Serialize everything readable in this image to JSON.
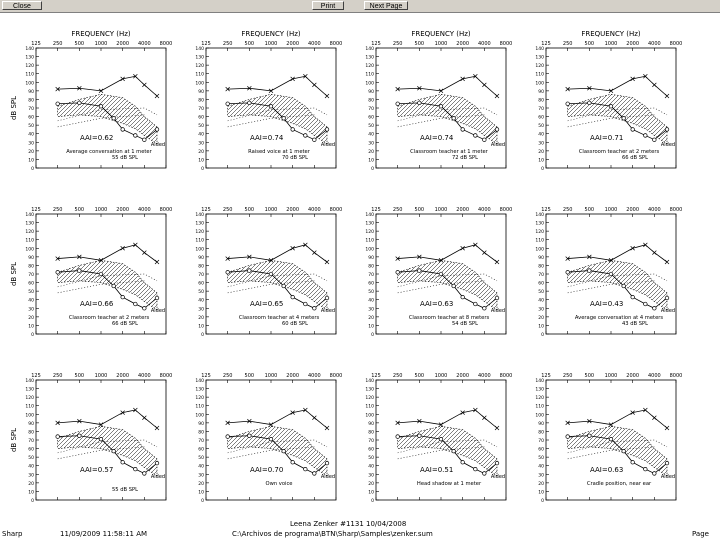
{
  "toolbar": {
    "close_label": "Close",
    "print_label": "Print",
    "next_page_label": "Next Page"
  },
  "footer": {
    "app": "Sharp",
    "datetime": "11/09/2009 11:58:11 AM",
    "center": "Leena Zenker  #1131  10/04/2008",
    "path": "C:\\Archivos de programa\\BTN\\Sharp\\Samples\\zenker.sum",
    "page": "Page"
  },
  "colors": {
    "line": "#000000",
    "toolbar": "#d4d0c8"
  },
  "chart_data": [
    {
      "type": "line",
      "xlabel": "FREQUENCY (Hz)",
      "ylabel": "dB SPL",
      "ylim": [
        0,
        140
      ],
      "x_ticks": [
        "125",
        "250",
        "500",
        "1000",
        "2000",
        "4000",
        "8000"
      ],
      "y_ticks": [
        "0",
        "10",
        "20",
        "30",
        "40",
        "50",
        "60",
        "70",
        "80",
        "90",
        "100",
        "110",
        "120",
        "130",
        "140"
      ],
      "aai": "AAI=0.62",
      "condition": "Average conversation at 1 meter",
      "level": "55 dB SPL",
      "aided": "Aided",
      "series": [
        {
          "x": [
            250,
            500,
            1000,
            2000,
            3000,
            4000,
            6000
          ],
          "y": [
            92,
            93,
            90,
            104,
            107,
            97,
            84
          ]
        },
        {
          "x": [
            250,
            500,
            1000,
            1500,
            2000,
            3000,
            4000,
            6000
          ],
          "y": [
            75,
            76,
            72,
            58,
            45,
            38,
            33,
            45
          ]
        }
      ]
    },
    {
      "type": "line",
      "xlabel": "FREQUENCY (Hz)",
      "ylim": [
        0,
        140
      ],
      "x_ticks": [
        "125",
        "250",
        "500",
        "1000",
        "2000",
        "4000",
        "8000"
      ],
      "y_ticks": [
        "0",
        "10",
        "20",
        "30",
        "40",
        "50",
        "60",
        "70",
        "80",
        "90",
        "100",
        "110",
        "120",
        "130",
        "140"
      ],
      "aai": "AAI=0.74",
      "condition": "Raised voice at 1 meter",
      "level": "70 dB SPL",
      "aided": "Aided",
      "series": [
        {
          "x": [
            250,
            500,
            1000,
            2000,
            3000,
            4000,
            6000
          ],
          "y": [
            92,
            93,
            90,
            104,
            107,
            97,
            84
          ]
        },
        {
          "x": [
            250,
            500,
            1000,
            1500,
            2000,
            3000,
            4000,
            6000
          ],
          "y": [
            75,
            76,
            72,
            58,
            45,
            38,
            33,
            45
          ]
        }
      ]
    },
    {
      "type": "line",
      "xlabel": "FREQUENCY (Hz)",
      "ylim": [
        0,
        140
      ],
      "x_ticks": [
        "125",
        "250",
        "500",
        "1000",
        "2000",
        "4000",
        "8000"
      ],
      "y_ticks": [
        "0",
        "10",
        "20",
        "30",
        "40",
        "50",
        "60",
        "70",
        "80",
        "90",
        "100",
        "110",
        "120",
        "130",
        "140"
      ],
      "aai": "AAI=0.74",
      "condition": "Classroom teacher at 1 meter",
      "level": "72 dB SPL",
      "aided": "Aided",
      "series": [
        {
          "x": [
            250,
            500,
            1000,
            2000,
            3000,
            4000,
            6000
          ],
          "y": [
            92,
            93,
            90,
            104,
            107,
            97,
            84
          ]
        },
        {
          "x": [
            250,
            500,
            1000,
            1500,
            2000,
            3000,
            4000,
            6000
          ],
          "y": [
            75,
            76,
            72,
            58,
            45,
            38,
            33,
            45
          ]
        }
      ]
    },
    {
      "type": "line",
      "xlabel": "FREQUENCY (Hz)",
      "ylim": [
        0,
        140
      ],
      "x_ticks": [
        "125",
        "250",
        "500",
        "1000",
        "2000",
        "4000",
        "8000"
      ],
      "y_ticks": [
        "0",
        "10",
        "20",
        "30",
        "40",
        "50",
        "60",
        "70",
        "80",
        "90",
        "100",
        "110",
        "120",
        "130",
        "140"
      ],
      "aai": "AAI=0.71",
      "condition": "Classroom teacher at 2 meters",
      "level": "66 dB SPL",
      "aided": "Aided",
      "series": [
        {
          "x": [
            250,
            500,
            1000,
            2000,
            3000,
            4000,
            6000
          ],
          "y": [
            92,
            93,
            90,
            104,
            107,
            97,
            84
          ]
        },
        {
          "x": [
            250,
            500,
            1000,
            1500,
            2000,
            3000,
            4000,
            6000
          ],
          "y": [
            75,
            76,
            72,
            58,
            45,
            38,
            33,
            45
          ]
        }
      ]
    },
    {
      "type": "line",
      "ylabel": "dB SPL",
      "ylim": [
        0,
        140
      ],
      "x_ticks": [
        "125",
        "250",
        "500",
        "1000",
        "2000",
        "4000",
        "8000"
      ],
      "y_ticks": [
        "0",
        "10",
        "20",
        "30",
        "40",
        "50",
        "60",
        "70",
        "80",
        "90",
        "100",
        "110",
        "120",
        "130",
        "140"
      ],
      "aai": "AAI=0.66",
      "condition": "Classroom teacher at 2 meters",
      "level": "66 dB SPL",
      "aided": "Aided",
      "series": [
        {
          "x": [
            250,
            500,
            1000,
            2000,
            3000,
            4000,
            6000
          ],
          "y": [
            88,
            90,
            86,
            100,
            104,
            95,
            84
          ]
        },
        {
          "x": [
            250,
            500,
            1000,
            1500,
            2000,
            3000,
            4000,
            6000
          ],
          "y": [
            72,
            74,
            70,
            56,
            43,
            35,
            30,
            42
          ]
        }
      ]
    },
    {
      "type": "line",
      "ylim": [
        0,
        140
      ],
      "x_ticks": [
        "125",
        "250",
        "500",
        "1000",
        "2000",
        "4000",
        "8000"
      ],
      "y_ticks": [
        "0",
        "10",
        "20",
        "30",
        "40",
        "50",
        "60",
        "70",
        "80",
        "90",
        "100",
        "110",
        "120",
        "130",
        "140"
      ],
      "aai": "AAI=0.65",
      "condition": "Classroom teacher at 4 meters",
      "level": "60 dB SPL",
      "aided": "Aided",
      "series": [
        {
          "x": [
            250,
            500,
            1000,
            2000,
            3000,
            4000,
            6000
          ],
          "y": [
            88,
            90,
            86,
            100,
            104,
            95,
            84
          ]
        },
        {
          "x": [
            250,
            500,
            1000,
            1500,
            2000,
            3000,
            4000,
            6000
          ],
          "y": [
            72,
            74,
            70,
            56,
            43,
            35,
            30,
            42
          ]
        }
      ]
    },
    {
      "type": "line",
      "ylim": [
        0,
        140
      ],
      "x_ticks": [
        "125",
        "250",
        "500",
        "1000",
        "2000",
        "4000",
        "8000"
      ],
      "y_ticks": [
        "0",
        "10",
        "20",
        "30",
        "40",
        "50",
        "60",
        "70",
        "80",
        "90",
        "100",
        "110",
        "120",
        "130",
        "140"
      ],
      "aai": "AAI=0.63",
      "condition": "Classroom teacher at 8 meters",
      "level": "54 dB SPL",
      "aided": "Aided",
      "series": [
        {
          "x": [
            250,
            500,
            1000,
            2000,
            3000,
            4000,
            6000
          ],
          "y": [
            88,
            90,
            86,
            100,
            104,
            95,
            84
          ]
        },
        {
          "x": [
            250,
            500,
            1000,
            1500,
            2000,
            3000,
            4000,
            6000
          ],
          "y": [
            72,
            74,
            70,
            56,
            43,
            35,
            30,
            42
          ]
        }
      ]
    },
    {
      "type": "line",
      "ylim": [
        0,
        140
      ],
      "x_ticks": [
        "125",
        "250",
        "500",
        "1000",
        "2000",
        "4000",
        "8000"
      ],
      "y_ticks": [
        "0",
        "10",
        "20",
        "30",
        "40",
        "50",
        "60",
        "70",
        "80",
        "90",
        "100",
        "110",
        "120",
        "130",
        "140"
      ],
      "aai": "AAI=0.43",
      "condition": "Average conversation at 4 meters",
      "level": "43 dB SPL",
      "aided": "Aided",
      "series": [
        {
          "x": [
            250,
            500,
            1000,
            2000,
            3000,
            4000,
            6000
          ],
          "y": [
            88,
            90,
            86,
            100,
            104,
            95,
            84
          ]
        },
        {
          "x": [
            250,
            500,
            1000,
            1500,
            2000,
            3000,
            4000,
            6000
          ],
          "y": [
            72,
            74,
            70,
            56,
            43,
            35,
            30,
            42
          ]
        }
      ]
    },
    {
      "type": "line",
      "ylabel": "dB SPL",
      "ylim": [
        0,
        140
      ],
      "x_ticks": [
        "125",
        "250",
        "500",
        "1000",
        "2000",
        "4000",
        "8000"
      ],
      "y_ticks": [
        "0",
        "10",
        "20",
        "30",
        "40",
        "50",
        "60",
        "70",
        "80",
        "90",
        "100",
        "110",
        "120",
        "130",
        "140"
      ],
      "aai": "AAI=0.57",
      "condition": "",
      "level": "55 dB SPL",
      "aided": "Aided",
      "series": [
        {
          "x": [
            250,
            500,
            1000,
            2000,
            3000,
            4000,
            6000
          ],
          "y": [
            90,
            92,
            88,
            102,
            105,
            96,
            84
          ]
        },
        {
          "x": [
            250,
            500,
            1000,
            1500,
            2000,
            3000,
            4000,
            6000
          ],
          "y": [
            74,
            75,
            71,
            57,
            44,
            36,
            31,
            43
          ]
        }
      ]
    },
    {
      "type": "line",
      "ylim": [
        0,
        140
      ],
      "x_ticks": [
        "125",
        "250",
        "500",
        "1000",
        "2000",
        "4000",
        "8000"
      ],
      "y_ticks": [
        "0",
        "10",
        "20",
        "30",
        "40",
        "50",
        "60",
        "70",
        "80",
        "90",
        "100",
        "110",
        "120",
        "130",
        "140"
      ],
      "aai": "AAI=0.70",
      "condition": "Own voice",
      "level": "",
      "aided": "Aided",
      "series": [
        {
          "x": [
            250,
            500,
            1000,
            2000,
            3000,
            4000,
            6000
          ],
          "y": [
            90,
            92,
            88,
            102,
            105,
            96,
            84
          ]
        },
        {
          "x": [
            250,
            500,
            1000,
            1500,
            2000,
            3000,
            4000,
            6000
          ],
          "y": [
            74,
            75,
            71,
            57,
            44,
            36,
            31,
            43
          ]
        }
      ]
    },
    {
      "type": "line",
      "ylim": [
        0,
        140
      ],
      "x_ticks": [
        "125",
        "250",
        "500",
        "1000",
        "2000",
        "4000",
        "8000"
      ],
      "y_ticks": [
        "0",
        "10",
        "20",
        "30",
        "40",
        "50",
        "60",
        "70",
        "80",
        "90",
        "100",
        "110",
        "120",
        "130",
        "140"
      ],
      "aai": "AAI=0.51",
      "condition": "Head shadow at 1 meter",
      "level": "",
      "aided": "Aided",
      "series": [
        {
          "x": [
            250,
            500,
            1000,
            2000,
            3000,
            4000,
            6000
          ],
          "y": [
            90,
            92,
            88,
            102,
            105,
            96,
            84
          ]
        },
        {
          "x": [
            250,
            500,
            1000,
            1500,
            2000,
            3000,
            4000,
            6000
          ],
          "y": [
            74,
            75,
            71,
            57,
            44,
            36,
            31,
            43
          ]
        }
      ]
    },
    {
      "type": "line",
      "ylim": [
        0,
        140
      ],
      "x_ticks": [
        "125",
        "250",
        "500",
        "1000",
        "2000",
        "4000",
        "8000"
      ],
      "y_ticks": [
        "0",
        "10",
        "20",
        "30",
        "40",
        "50",
        "60",
        "70",
        "80",
        "90",
        "100",
        "110",
        "120",
        "130",
        "140"
      ],
      "aai": "AAI=0.63",
      "condition": "Cradle position, near ear",
      "level": "",
      "aided": "Aided",
      "series": [
        {
          "x": [
            250,
            500,
            1000,
            2000,
            3000,
            4000,
            6000
          ],
          "y": [
            90,
            92,
            88,
            102,
            105,
            96,
            84
          ]
        },
        {
          "x": [
            250,
            500,
            1000,
            1500,
            2000,
            3000,
            4000,
            6000
          ],
          "y": [
            74,
            75,
            71,
            57,
            44,
            36,
            31,
            43
          ]
        }
      ]
    }
  ]
}
